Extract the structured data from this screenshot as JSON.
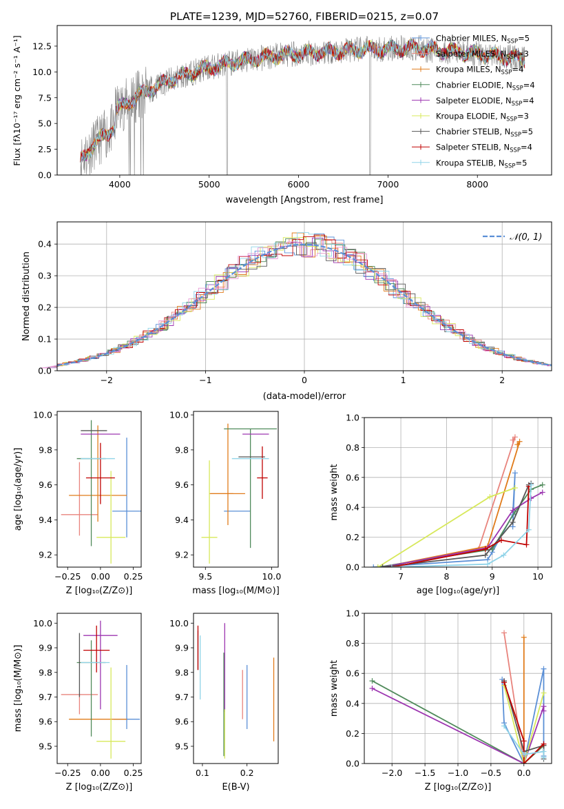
{
  "chart_data": [
    {
      "id": "spectrum",
      "type": "line",
      "title": "PLATE=1239, MJD=52760, FIBERID=0215, z=0.07",
      "xlabel": "wavelength [Angstrom, rest frame]",
      "ylabel": "Flux [fλ10⁻¹⁷ erg cm⁻² s⁻¹ A⁻¹]",
      "xlim": [
        3300,
        8830
      ],
      "ylim": [
        0,
        14.5
      ],
      "xticks": [
        "4000",
        "5000",
        "6000",
        "7000",
        "8000"
      ],
      "yticks": [
        "0.0",
        "2.5",
        "5.0",
        "7.5",
        "10.0",
        "12.5"
      ],
      "grid": false,
      "legend_position": "top-right",
      "data_series": {
        "name": "data",
        "color": "#808080",
        "x_range": [
          3560,
          8530
        ],
        "shape": "noisy continuum rising from ~3 to ~12 with absorption features"
      },
      "model_series": [
        {
          "label": "Chabrier MILES, N",
          "sub": "SSP",
          "n": "=5",
          "color": "#5a8fd6"
        },
        {
          "label": "Salpeter MILES, N",
          "sub": "SSP",
          "n": "=3",
          "color": "#e8837c"
        },
        {
          "label": "Kroupa MILES, N",
          "sub": "SSP",
          "n": "=4",
          "color": "#e07b1a"
        },
        {
          "label": "Chabrier ELODIE, N",
          "sub": "SSP",
          "n": "=4",
          "color": "#4f8a5a"
        },
        {
          "label": "Salpeter ELODIE, N",
          "sub": "SSP",
          "n": "=4",
          "color": "#9c35b0"
        },
        {
          "label": "Kroupa ELODIE, N",
          "sub": "SSP",
          "n": "=3",
          "color": "#d7e85a"
        },
        {
          "label": "Chabrier STELIB, N",
          "sub": "SSP",
          "n": "=5",
          "color": "#555555"
        },
        {
          "label": "Salpeter STELIB, N",
          "sub": "SSP",
          "n": "=4",
          "color": "#c00000"
        },
        {
          "label": "Kroupa STELIB, N",
          "sub": "SSP",
          "n": "=5",
          "color": "#8fd3e8"
        }
      ]
    },
    {
      "id": "residuals",
      "type": "bar",
      "xlabel": "(data-model)/error",
      "ylabel": "Normed distribution",
      "xlim": [
        -2.5,
        2.5
      ],
      "ylim": [
        0,
        0.47
      ],
      "xticks": [
        "−2",
        "−1",
        "0",
        "1",
        "2"
      ],
      "yticks": [
        "0.0",
        "0.1",
        "0.2",
        "0.3",
        "0.4"
      ],
      "grid": true,
      "legend": "𝒩(0, 1)",
      "legend_position": "top-right",
      "reference_curve": {
        "name": "N(0,1)",
        "mean": 0,
        "sigma": 1,
        "color": "#5a8fd6"
      }
    },
    {
      "id": "age-vs-Z",
      "type": "scatter",
      "xlabel": "Z [log₁₀(Z/Z⊙)]",
      "ylabel": "age  [log₁₀(age/yr)]",
      "xlim": [
        -0.33,
        0.31
      ],
      "ylim": [
        9.13,
        10.02
      ],
      "xticks": [
        "−0.25",
        "0.00",
        "0.25"
      ],
      "xtick_values": [
        -0.25,
        0,
        0.25
      ],
      "yticks": [
        "9.2",
        "9.4",
        "9.6",
        "9.8",
        "10.0"
      ],
      "ytick_values": [
        9.2,
        9.4,
        9.6,
        9.8,
        10.0
      ],
      "grid": false,
      "points": [
        {
          "x": 0.2,
          "xerr": [
            0.11,
            0.11
          ],
          "y": 9.45,
          "yerr": [
            0.15,
            0.42
          ],
          "color": "#5a8fd6"
        },
        {
          "x": -0.16,
          "xerr": [
            0.14,
            0.14
          ],
          "y": 9.43,
          "yerr": [
            0.12,
            0.3
          ],
          "color": "#e8837c"
        },
        {
          "x": -0.02,
          "xerr": [
            0.22,
            0.22
          ],
          "y": 9.54,
          "yerr": [
            0.15,
            0.4
          ],
          "color": "#e07b1a"
        },
        {
          "x": -0.07,
          "xerr": [
            0.11,
            0.11
          ],
          "y": 9.75,
          "yerr": [
            0.5,
            0.22
          ],
          "color": "#4f8a5a"
        },
        {
          "x": 0.0,
          "xerr": [
            0.15,
            0.15
          ],
          "y": 9.89,
          "yerr": [
            0.0,
            0.0
          ],
          "color": "#9c35b0"
        },
        {
          "x": 0.08,
          "xerr": [
            0.11,
            0.11
          ],
          "y": 9.3,
          "yerr": [
            0.15,
            0.38
          ],
          "color": "#d7e85a"
        },
        {
          "x": -0.05,
          "xerr": [
            0.1,
            0.1
          ],
          "y": 9.91,
          "yerr": [
            0.0,
            0.0
          ],
          "color": "#555555"
        },
        {
          "x": 0.0,
          "xerr": [
            0.11,
            0.11
          ],
          "y": 9.64,
          "yerr": [
            0.15,
            0.2
          ],
          "color": "#c00000"
        },
        {
          "x": -0.02,
          "xerr": [
            0.13,
            0.13
          ],
          "y": 9.75,
          "yerr": [
            0.0,
            0.0
          ],
          "color": "#8fd3e8"
        }
      ]
    },
    {
      "id": "age-vs-mass",
      "type": "scatter",
      "xlabel": "mass [log₁₀(M/M⊙)]",
      "ylabel": "",
      "xlim": [
        9.41,
        10.05
      ],
      "ylim": [
        9.13,
        10.02
      ],
      "xticks": [
        "9.5",
        "10.0"
      ],
      "xtick_values": [
        9.5,
        10.0
      ],
      "yticks": [
        "9.2",
        "9.4",
        "9.6",
        "9.8",
        "10.0"
      ],
      "ytick_values": [
        9.2,
        9.4,
        9.6,
        9.8,
        10.0
      ],
      "grid": false,
      "points": [
        {
          "x": 9.74,
          "xerr": [
            0.1,
            0.1
          ],
          "y": 9.45,
          "yerr": [
            0.0,
            0.0
          ],
          "color": "#5a8fd6"
        },
        {
          "x": 9.62,
          "xerr": [
            0.09,
            0.09
          ],
          "y": 9.55,
          "yerr": [
            0.0,
            0.0
          ],
          "color": "#e07b1a"
        },
        {
          "x": 9.67,
          "xerr": [
            0.13,
            0.13
          ],
          "y": 9.55,
          "yerr": [
            0.18,
            0.4
          ],
          "color": "#e07b1a"
        },
        {
          "x": 9.84,
          "xerr": [
            0.2,
            0.2
          ],
          "y": 9.92,
          "yerr": [
            0.68,
            0.0
          ],
          "color": "#4f8a5a"
        },
        {
          "x": 9.88,
          "xerr": [
            0.1,
            0.1
          ],
          "y": 9.89,
          "yerr": [
            0.0,
            0.0
          ],
          "color": "#9c35b0"
        },
        {
          "x": 9.53,
          "xerr": [
            0.06,
            0.06
          ],
          "y": 9.3,
          "yerr": [
            0.15,
            0.44
          ],
          "color": "#d7e85a"
        },
        {
          "x": 9.85,
          "xerr": [
            0.1,
            0.1
          ],
          "y": 9.76,
          "yerr": [
            0.0,
            0.0
          ],
          "color": "#555555"
        },
        {
          "x": 9.93,
          "xerr": [
            0.04,
            0.04
          ],
          "y": 9.64,
          "yerr": [
            0.12,
            0.18
          ],
          "color": "#c00000"
        },
        {
          "x": 9.84,
          "xerr": [
            0.14,
            0.14
          ],
          "y": 9.75,
          "yerr": [
            0.0,
            0.0
          ],
          "color": "#8fd3e8"
        }
      ]
    },
    {
      "id": "mass-weight-vs-age",
      "type": "line",
      "xlabel": "age  [log₁₀(age/yr)]",
      "ylabel": "mass weight",
      "xlim": [
        6.2,
        10.3
      ],
      "ylim": [
        0,
        1.0
      ],
      "xticks": [
        "7",
        "8",
        "9",
        "10"
      ],
      "xtick_values": [
        7,
        8,
        9,
        10
      ],
      "yticks": [
        "0.0",
        "0.2",
        "0.4",
        "0.6",
        "0.8",
        "1.0"
      ],
      "ytick_values": [
        0,
        0.2,
        0.4,
        0.6,
        0.8,
        1.0
      ],
      "grid": true,
      "series": [
        {
          "color": "#5a8fd6",
          "x": [
            6.4,
            8.9,
            9.0,
            9.45,
            9.5,
            9.45
          ],
          "y": [
            0.0,
            0.05,
            0.1,
            0.35,
            0.63,
            0.27
          ]
        },
        {
          "color": "#e8837c",
          "x": [
            6.6,
            8.7,
            9.5,
            9.45
          ],
          "y": [
            0.0,
            0.12,
            0.87,
            0.85
          ]
        },
        {
          "color": "#e07b1a",
          "x": [
            6.6,
            8.9,
            9.6,
            9.55
          ],
          "y": [
            0.0,
            0.14,
            0.84,
            0.82
          ]
        },
        {
          "color": "#4f8a5a",
          "x": [
            6.5,
            9.0,
            9.5,
            9.85,
            10.1
          ],
          "y": [
            0.0,
            0.12,
            0.37,
            0.52,
            0.55
          ]
        },
        {
          "color": "#9c35b0",
          "x": [
            6.6,
            8.9,
            9.45,
            9.85,
            10.1
          ],
          "y": [
            0.0,
            0.13,
            0.38,
            0.46,
            0.5
          ]
        },
        {
          "color": "#d7e85a",
          "x": [
            6.5,
            8.95,
            9.5
          ],
          "y": [
            0.0,
            0.47,
            0.53
          ]
        },
        {
          "color": "#555555",
          "x": [
            6.6,
            8.85,
            9.45,
            9.8,
            9.85
          ],
          "y": [
            0.0,
            0.08,
            0.3,
            0.55,
            0.56
          ]
        },
        {
          "color": "#c00000",
          "x": [
            6.8,
            8.85,
            9.2,
            9.75,
            9.8
          ],
          "y": [
            0.0,
            0.12,
            0.18,
            0.15,
            0.54
          ]
        },
        {
          "color": "#8fd3e8",
          "x": [
            6.8,
            8.9,
            9.25,
            9.8,
            9.85
          ],
          "y": [
            0.0,
            0.02,
            0.08,
            0.25,
            0.55
          ]
        }
      ]
    },
    {
      "id": "mass-vs-Z",
      "type": "scatter",
      "xlabel": "Z [log₁₀(Z/Z⊙)]",
      "ylabel": "mass [log₁₀(M/M⊙)]",
      "xlim": [
        -0.33,
        0.31
      ],
      "ylim": [
        9.43,
        10.04
      ],
      "xticks": [
        "−0.25",
        "0.00",
        "0.25"
      ],
      "xtick_values": [
        -0.25,
        0,
        0.25
      ],
      "yticks": [
        "9.5",
        "9.6",
        "9.7",
        "9.8",
        "9.9",
        "10.0"
      ],
      "ytick_values": [
        9.5,
        9.6,
        9.7,
        9.8,
        9.9,
        10.0
      ],
      "grid": false,
      "points": [
        {
          "x": 0.2,
          "xerr": [
            0.1,
            0.1
          ],
          "y": 9.61,
          "yerr": [
            0.04,
            0.22
          ],
          "color": "#5a8fd6"
        },
        {
          "x": -0.16,
          "xerr": [
            0.14,
            0.14
          ],
          "y": 9.71,
          "yerr": [
            0.08,
            0.0
          ],
          "color": "#e8837c"
        },
        {
          "x": -0.02,
          "xerr": [
            0.22,
            0.22
          ],
          "y": 9.61,
          "yerr": [
            0.0,
            0.0
          ],
          "color": "#e07b1a"
        },
        {
          "x": -0.07,
          "xerr": [
            0.11,
            0.11
          ],
          "y": 9.84,
          "yerr": [
            0.3,
            0.09
          ],
          "color": "#4f8a5a"
        },
        {
          "x": 0.0,
          "xerr": [
            0.13,
            0.13
          ],
          "y": 9.95,
          "yerr": [
            0.3,
            0.06
          ],
          "color": "#9c35b0"
        },
        {
          "x": 0.08,
          "xerr": [
            0.11,
            0.11
          ],
          "y": 9.52,
          "yerr": [
            0.07,
            0.3
          ],
          "color": "#d7e85a"
        },
        {
          "x": -0.16,
          "xerr": [
            0.0,
            0.0
          ],
          "y": 9.84,
          "yerr": [
            0.14,
            0.12
          ],
          "color": "#555555"
        },
        {
          "x": -0.03,
          "xerr": [
            0.1,
            0.1
          ],
          "y": 9.89,
          "yerr": [
            0.09,
            0.1
          ],
          "color": "#c00000"
        },
        {
          "x": -0.04,
          "xerr": [
            0.11,
            0.11
          ],
          "y": 9.84,
          "yerr": [
            0.0,
            0.0
          ],
          "color": "#8fd3e8"
        }
      ]
    },
    {
      "id": "mass-vs-EBV",
      "type": "scatter",
      "xlabel": "E(B-V)",
      "ylabel": "",
      "xlim": [
        0.08,
        0.27
      ],
      "ylim": [
        9.43,
        10.04
      ],
      "xticks": [
        "0.1",
        "0.2"
      ],
      "xtick_values": [
        0.1,
        0.2
      ],
      "yticks": [
        "9.5",
        "9.6",
        "9.7",
        "9.8",
        "9.9",
        "10.0"
      ],
      "ytick_values": [
        9.5,
        9.6,
        9.7,
        9.8,
        9.9,
        10.0
      ],
      "grid": false,
      "points": [
        {
          "x": 0.2,
          "xerr": [
            0.0,
            0.0
          ],
          "y": 9.7,
          "yerr": [
            0.13,
            0.13
          ],
          "color": "#5a8fd6"
        },
        {
          "x": 0.19,
          "xerr": [
            0.0,
            0.0
          ],
          "y": 9.71,
          "yerr": [
            0.1,
            0.1
          ],
          "color": "#e8837c"
        },
        {
          "x": 0.26,
          "xerr": [
            0.0,
            0.0
          ],
          "y": 9.69,
          "yerr": [
            0.17,
            0.17
          ],
          "color": "#e07b1a"
        },
        {
          "x": 0.148,
          "xerr": [
            0.0,
            0.0
          ],
          "y": 9.67,
          "yerr": [
            0.21,
            0.21
          ],
          "color": "#4f8a5a"
        },
        {
          "x": 0.15,
          "xerr": [
            0.0,
            0.0
          ],
          "y": 9.82,
          "yerr": [
            0.18,
            0.18
          ],
          "color": "#9c35b0"
        },
        {
          "x": 0.15,
          "xerr": [
            0.0,
            0.0
          ],
          "y": 9.55,
          "yerr": [
            0.1,
            0.1
          ],
          "color": "#d7e85a"
        },
        {
          "x": 0.09,
          "xerr": [
            0.0,
            0.0
          ],
          "y": 9.89,
          "yerr": [
            0.08,
            0.08
          ],
          "color": "#555555"
        },
        {
          "x": 0.09,
          "xerr": [
            0.0,
            0.0
          ],
          "y": 9.9,
          "yerr": [
            0.09,
            0.09
          ],
          "color": "#c00000"
        },
        {
          "x": 0.095,
          "xerr": [
            0.0,
            0.0
          ],
          "y": 9.82,
          "yerr": [
            0.13,
            0.13
          ],
          "color": "#8fd3e8"
        }
      ]
    },
    {
      "id": "mass-weight-vs-Z",
      "type": "line",
      "xlabel": "Z [log₁₀(Z/Z⊙)]",
      "ylabel": "mass weight",
      "xlim": [
        -2.42,
        0.42
      ],
      "ylim": [
        0,
        1.0
      ],
      "xticks": [
        "−2.0",
        "−1.5",
        "−1.0",
        "−0.5",
        "0.0"
      ],
      "xtick_values": [
        -2.0,
        -1.5,
        -1.0,
        -0.5,
        0.0
      ],
      "yticks": [
        "0.0",
        "0.2",
        "0.4",
        "0.6",
        "0.8",
        "1.0"
      ],
      "ytick_values": [
        0,
        0.2,
        0.4,
        0.6,
        0.8,
        1.0
      ],
      "grid": true,
      "series": [
        {
          "color": "#5a8fd6",
          "x": [
            -0.33,
            -0.3,
            0.0,
            0.3,
            0.3
          ],
          "y": [
            0.56,
            0.27,
            0.0,
            0.63,
            0.05
          ]
        },
        {
          "color": "#e8837c",
          "x": [
            -0.3,
            0.0,
            0.3
          ],
          "y": [
            0.87,
            0.0,
            0.12
          ]
        },
        {
          "color": "#e07b1a",
          "x": [
            0.0,
            0.0,
            0.3
          ],
          "y": [
            0.84,
            0.0,
            0.12
          ]
        },
        {
          "color": "#4f8a5a",
          "x": [
            -2.3,
            0.0,
            0.3
          ],
          "y": [
            0.55,
            0.0,
            0.12
          ]
        },
        {
          "color": "#9c35b0",
          "x": [
            -2.3,
            0.0,
            0.3,
            0.3
          ],
          "y": [
            0.5,
            0.0,
            0.38,
            0.35
          ]
        },
        {
          "color": "#d7e85a",
          "x": [
            -0.3,
            0.0,
            0.3
          ],
          "y": [
            0.52,
            0.0,
            0.47
          ]
        },
        {
          "color": "#555555",
          "x": [
            -0.3,
            0.0,
            0.3,
            0.3
          ],
          "y": [
            0.55,
            0.08,
            0.12,
            0.03
          ]
        },
        {
          "color": "#c00000",
          "x": [
            -0.3,
            0.0,
            0.0,
            0.3
          ],
          "y": [
            0.54,
            0.15,
            0.0,
            0.13
          ]
        },
        {
          "color": "#8fd3e8",
          "x": [
            -0.3,
            0.0,
            0.3,
            0.3
          ],
          "y": [
            0.25,
            0.06,
            0.08,
            0.04
          ]
        }
      ]
    }
  ]
}
